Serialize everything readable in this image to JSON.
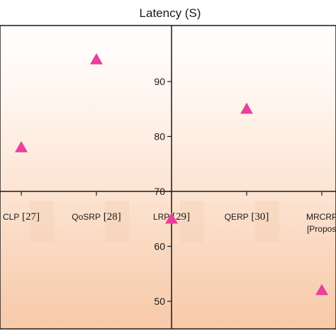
{
  "chart_data": {
    "type": "scatter",
    "title": "Latency (S)",
    "categories": [
      {
        "name": "CLP",
        "ref": "[27]",
        "sub": ""
      },
      {
        "name": "QoSRP",
        "ref": "[28]",
        "sub": ""
      },
      {
        "name": "LRP",
        "ref": "[29]",
        "sub": ""
      },
      {
        "name": "QERP",
        "ref": "[30]",
        "sub": ""
      },
      {
        "name": "MRCRP",
        "ref": "",
        "sub": "[Proposed]"
      }
    ],
    "values": [
      78,
      94,
      65,
      85,
      52
    ],
    "yticks": [
      50,
      60,
      70,
      80,
      90
    ],
    "ylim": [
      45,
      100
    ],
    "x_axis_at": 70,
    "marker": "triangle",
    "marker_color": "#e8409c",
    "background_gradient": [
      "#fde8d8",
      "#f7c9a8"
    ],
    "grid": false
  }
}
